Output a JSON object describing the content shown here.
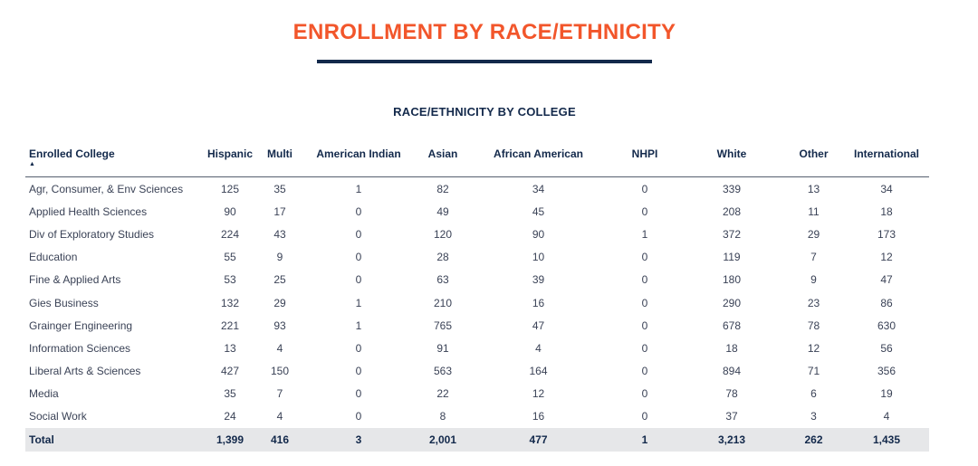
{
  "page": {
    "title": "ENROLLMENT BY RACE/ETHNICITY",
    "colors": {
      "accent": "#f2562b",
      "navy": "#13294b",
      "total_row_bg": "#e6e7e9"
    }
  },
  "section": {
    "title": "RACE/ETHNICITY BY COLLEGE"
  },
  "table": {
    "sort_icon": "sort-ascending-icon",
    "headers": [
      "Enrolled College",
      "Hispanic",
      "Multi",
      "American Indian",
      "Asian",
      "African American",
      "NHPI",
      "White",
      "Other",
      "International"
    ],
    "rows": [
      [
        "Agr, Consumer, & Env Sciences",
        "125",
        "35",
        "1",
        "82",
        "34",
        "0",
        "339",
        "13",
        "34"
      ],
      [
        "Applied Health Sciences",
        "90",
        "17",
        "0",
        "49",
        "45",
        "0",
        "208",
        "11",
        "18"
      ],
      [
        "Div of Exploratory Studies",
        "224",
        "43",
        "0",
        "120",
        "90",
        "1",
        "372",
        "29",
        "173"
      ],
      [
        "Education",
        "55",
        "9",
        "0",
        "28",
        "10",
        "0",
        "119",
        "7",
        "12"
      ],
      [
        "Fine & Applied Arts",
        "53",
        "25",
        "0",
        "63",
        "39",
        "0",
        "180",
        "9",
        "47"
      ],
      [
        "Gies Business",
        "132",
        "29",
        "1",
        "210",
        "16",
        "0",
        "290",
        "23",
        "86"
      ],
      [
        "Grainger Engineering",
        "221",
        "93",
        "1",
        "765",
        "47",
        "0",
        "678",
        "78",
        "630"
      ],
      [
        "Information Sciences",
        "13",
        "4",
        "0",
        "91",
        "4",
        "0",
        "18",
        "12",
        "56"
      ],
      [
        "Liberal Arts & Sciences",
        "427",
        "150",
        "0",
        "563",
        "164",
        "0",
        "894",
        "71",
        "356"
      ],
      [
        "Media",
        "35",
        "7",
        "0",
        "22",
        "12",
        "0",
        "78",
        "6",
        "19"
      ],
      [
        "Social Work",
        "24",
        "4",
        "0",
        "8",
        "16",
        "0",
        "37",
        "3",
        "4"
      ]
    ],
    "total": [
      "Total",
      "1,399",
      "416",
      "3",
      "2,001",
      "477",
      "1",
      "3,213",
      "262",
      "1,435"
    ]
  }
}
